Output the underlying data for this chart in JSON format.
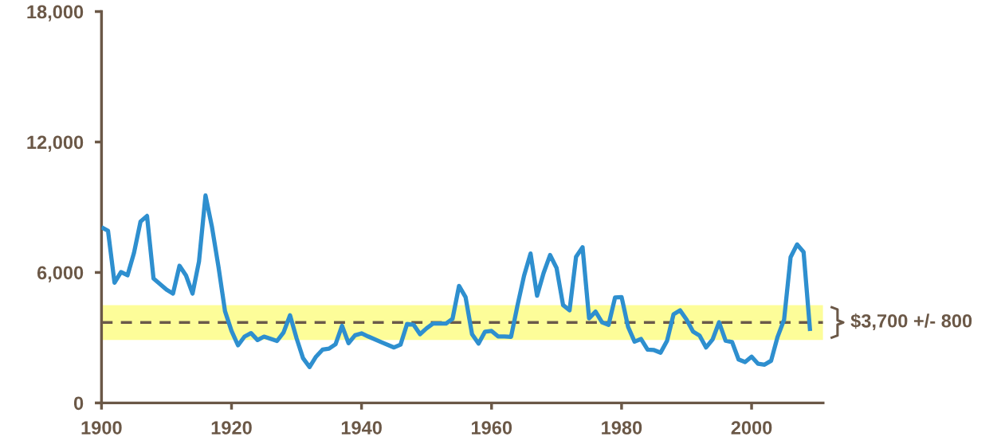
{
  "chart_data": {
    "type": "line",
    "x": [
      1900,
      1901,
      1902,
      1903,
      1904,
      1905,
      1906,
      1907,
      1908,
      1909,
      1910,
      1911,
      1912,
      1913,
      1914,
      1915,
      1916,
      1917,
      1918,
      1919,
      1920,
      1921,
      1922,
      1923,
      1924,
      1925,
      1926,
      1927,
      1928,
      1929,
      1930,
      1931,
      1932,
      1933,
      1934,
      1935,
      1936,
      1937,
      1938,
      1939,
      1940,
      1941,
      1943,
      1945,
      1946,
      1947,
      1948,
      1949,
      1950,
      1951,
      1953,
      1954,
      1955,
      1956,
      1957,
      1958,
      1959,
      1960,
      1961,
      1962,
      1963,
      1964,
      1965,
      1966,
      1967,
      1968,
      1969,
      1970,
      1971,
      1972,
      1973,
      1974,
      1975,
      1976,
      1977,
      1978,
      1979,
      1980,
      1981,
      1982,
      1983,
      1984,
      1985,
      1986,
      1987,
      1988,
      1989,
      1990,
      1991,
      1992,
      1993,
      1994,
      1995,
      1996,
      1997,
      1998,
      1999,
      2000,
      2001,
      2002,
      2003,
      2004,
      2005,
      2006,
      2007,
      2008,
      2009
    ],
    "series": [
      {
        "color": "#2e8fcf",
        "values": [
          8080,
          7920,
          5530,
          6020,
          5870,
          6900,
          8340,
          8600,
          5720,
          5470,
          5210,
          5030,
          6310,
          5860,
          5030,
          6510,
          9540,
          8080,
          6250,
          4220,
          3310,
          2650,
          3050,
          3210,
          2890,
          3050,
          2950,
          2850,
          3240,
          4030,
          2980,
          2060,
          1650,
          2130,
          2450,
          2500,
          2700,
          3550,
          2750,
          3110,
          3200,
          3060,
          2800,
          2550,
          2680,
          3630,
          3600,
          3160,
          3430,
          3650,
          3650,
          3870,
          5380,
          4870,
          3160,
          2730,
          3280,
          3310,
          3060,
          3060,
          3040,
          4500,
          5850,
          6870,
          4930,
          5970,
          6800,
          6210,
          4500,
          4260,
          6720,
          7160,
          3890,
          4200,
          3710,
          3590,
          4850,
          4870,
          3500,
          2820,
          2940,
          2450,
          2430,
          2310,
          2860,
          4080,
          4260,
          3830,
          3280,
          3100,
          2550,
          2920,
          3710,
          2860,
          2800,
          2000,
          1880,
          2130,
          1800,
          1760,
          1940,
          3040,
          3830,
          6700,
          7290,
          6940,
          3310
        ]
      }
    ],
    "xlim": [
      1900,
      2011
    ],
    "xticks": [
      1900,
      1920,
      1940,
      1960,
      1980,
      2000
    ],
    "ylim": [
      0,
      18000
    ],
    "yticks": [
      {
        "value": 0,
        "label": "0"
      },
      {
        "value": 6000,
        "label": "6,000"
      },
      {
        "value": 12000,
        "label": "12,000"
      },
      {
        "value": 18000,
        "label": "18,000"
      }
    ],
    "ref_lines": [
      {
        "axis": "y",
        "value": 3700,
        "label": "$3,700 +/- 800",
        "color": "#6b5a4a",
        "line_style": "dashed"
      }
    ],
    "bands": [
      {
        "axis": "y",
        "from": 2900,
        "to": 4500,
        "color": "#fdfd99"
      }
    ],
    "grid": false,
    "line_style": "solid",
    "marker": "none"
  }
}
